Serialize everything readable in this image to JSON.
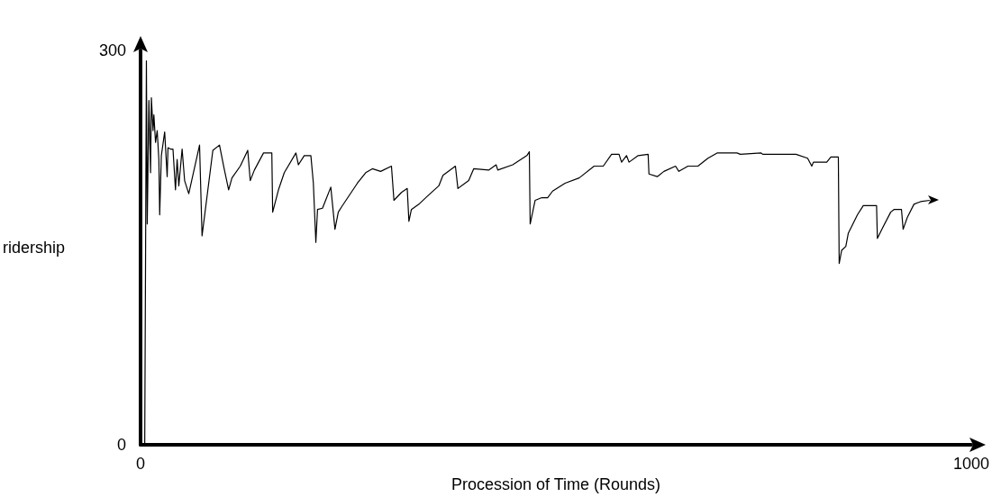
{
  "chart_data": {
    "type": "line",
    "xlabel": "Procession of Time (Rounds)",
    "ylabel": "ridership",
    "xlim": [
      0,
      1000
    ],
    "ylim": [
      0,
      300
    ],
    "xticks": [
      0,
      1000
    ],
    "yticks": [
      0,
      300
    ],
    "grid": false,
    "marker": "none",
    "line_style": "solid",
    "series": [
      {
        "color": "#000000",
        "x": [
          5,
          6,
          7,
          8,
          10,
          12,
          13,
          15,
          16,
          18,
          20,
          22,
          23,
          25,
          29,
          32,
          33,
          36,
          39,
          42,
          44,
          46,
          50,
          53,
          58,
          71,
          74,
          87,
          95,
          100,
          106,
          110,
          120,
          129,
          132,
          137,
          148,
          158,
          159,
          166,
          173,
          187,
          190,
          197,
          205,
          208,
          211,
          213,
          219,
          229,
          234,
          238,
          242,
          261,
          271,
          279,
          289,
          302,
          305,
          314,
          321,
          323,
          326,
          335,
          345,
          359,
          364,
          379,
          382,
          395,
          401,
          419,
          428,
          430,
          448,
          465,
          468,
          469,
          475,
          483,
          490,
          496,
          511,
          528,
          546,
          557,
          567,
          576,
          579,
          585,
          588,
          599,
          611,
          612,
          622,
          630,
          644,
          648,
          659,
          671,
          683,
          694,
          718,
          722,
          747,
          749,
          789,
          803,
          808,
          810,
          826,
          831,
          840,
          841,
          844,
          849,
          852,
          863,
          870,
          886,
          887,
          894,
          903,
          907,
          916,
          918,
          923,
          931,
          939,
          950
        ],
        "values": [
          1,
          143,
          292,
          168,
          262,
          207,
          264,
          239,
          251,
          230,
          239,
          217,
          175,
          220,
          238,
          204,
          226,
          225,
          225,
          194,
          217,
          197,
          225,
          201,
          191,
          228,
          159,
          224,
          228,
          212,
          194,
          203,
          212,
          224,
          201,
          209,
          222,
          222,
          177,
          194,
          207,
          222,
          213,
          220,
          220,
          199,
          154,
          179,
          180,
          196,
          164,
          177,
          181,
          199,
          207,
          210,
          208,
          212,
          186,
          192,
          195,
          170,
          179,
          183,
          189,
          197,
          205,
          212,
          195,
          201,
          210,
          209,
          213,
          209,
          213,
          220,
          223,
          168,
          186,
          188,
          188,
          193,
          199,
          203,
          212,
          212,
          221,
          221,
          215,
          220,
          215,
          220,
          221,
          206,
          204,
          208,
          212,
          208,
          212,
          212,
          218,
          222,
          222,
          221,
          222,
          221,
          221,
          218,
          212,
          215,
          215,
          219,
          219,
          138,
          148,
          151,
          161,
          175,
          182,
          182,
          157,
          166,
          177,
          179,
          179,
          164,
          173,
          183,
          185,
          186
        ]
      }
    ]
  }
}
